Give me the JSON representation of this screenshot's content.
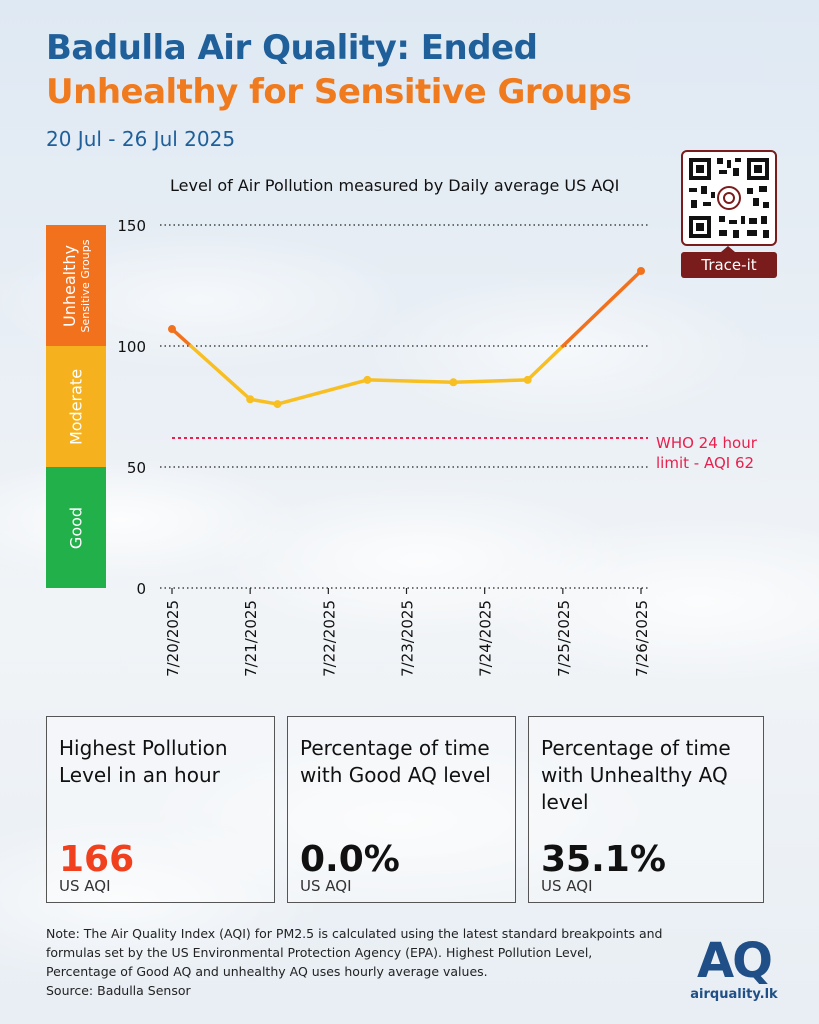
{
  "header": {
    "title_line1": "Badulla Air Quality: Ended",
    "title_line2": "Unhealthy for Sensitive Groups",
    "date_range": "20 Jul - 26 Jul 2025"
  },
  "chart_data": {
    "type": "line",
    "subtitle": "Level of Air Pollution measured by Daily average US AQI",
    "categories": [
      "7/20/2025",
      "7/21/2025",
      "7/22/2025",
      "7/23/2025",
      "7/24/2025",
      "7/25/2025",
      "7/26/2025"
    ],
    "x": [
      "7/20/2025",
      "7/21/2025",
      "7/21/2025",
      "7/22/2025",
      "7/23/2025",
      "7/24/2025",
      "7/25/2025",
      "7/26/2025"
    ],
    "series": [
      {
        "values": [
          107,
          78,
          76,
          86,
          85,
          86,
          131
        ]
      }
    ],
    "point_dates": [
      "7/20/2025",
      "7/21/2025",
      "7/21/2025",
      "7/22/2025",
      "7/23/2025",
      "7/24/2025",
      "7/26/2025"
    ],
    "yticks": [
      0,
      50,
      100,
      150
    ],
    "ylim": [
      0,
      150
    ],
    "bands": [
      {
        "label": "Good",
        "from": 0,
        "to": 50,
        "color": "#22b04b"
      },
      {
        "label": "Moderate",
        "from": 50,
        "to": 100,
        "color": "#f5b21e"
      },
      {
        "label": "Unhealthy",
        "sublabel": "Sensitive Groups",
        "from": 100,
        "to": 150,
        "color": "#f2711c"
      }
    ],
    "reference_line": {
      "value": 62,
      "label_line1": "WHO 24 hour",
      "label_line2": "limit - AQI 62",
      "color": "#e8204e"
    },
    "line_colors": {
      "moderate": "#f7bf22",
      "unhealthy": "#f2711c"
    },
    "grid": "dotted horizontal at ticks"
  },
  "qr": {
    "label": "Trace-it"
  },
  "cards": [
    {
      "title": "Highest Pollution Level in an hour",
      "value": "166",
      "unit": "US AQI",
      "value_color": "#f0401e"
    },
    {
      "title": "Percentage of time with Good AQ level",
      "value": "0.0%",
      "unit": "US AQI",
      "value_color": "#111111"
    },
    {
      "title": "Percentage of time with Unhealthy AQ level",
      "value": "35.1%",
      "unit": "US AQI",
      "value_color": "#111111"
    }
  ],
  "footer": {
    "note": "Note: The Air Quality Index (AQI) for PM2.5 is calculated using the latest standard breakpoints and formulas set by the US Environmental Protection Agency (EPA). Highest Pollution Level, Percentage of Good AQ and unhealthy AQ uses hourly average values.",
    "source": "Source: Badulla Sensor",
    "logo_mark": "AQ",
    "logo_text": "airquality.lk"
  }
}
